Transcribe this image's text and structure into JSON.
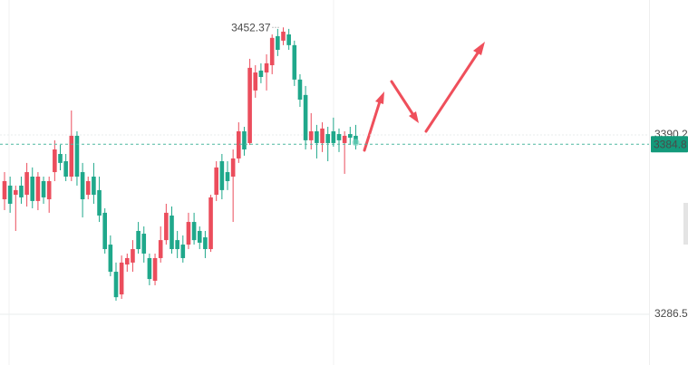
{
  "chart_data": {
    "type": "candlestick",
    "up_color": "#eb4d5c",
    "down_color": "#1fa88b",
    "ylim": [
      3257.2,
      3468.2
    ],
    "yticks": [
      3390.2,
      3286.5
    ],
    "grid": true,
    "last_price": 3384.8,
    "max_annotation": 3452.37,
    "open": [
      3353.0,
      3360.9,
      3355.6,
      3360.9,
      3355.6,
      3366.1,
      3352.0,
      3363.5,
      3353.0,
      3368.7,
      3379.2,
      3375.0,
      3366.1,
      3389.7,
      3368.7,
      3355.6,
      3366.1,
      3358.3,
      3345.2,
      3326.8,
      3311.1,
      3298.0,
      3315.3,
      3316.4,
      3334.7,
      3333.1,
      3319.0,
      3305.9,
      3319.0,
      3329.4,
      3343.6,
      3329.4,
      3326.8,
      3326.8,
      3339.9,
      3334.7,
      3331.0,
      3324.2,
      3355.6,
      3375.0,
      3368.7,
      3366.1,
      3376.6,
      3392.3,
      3385.5,
      3415.9,
      3427.4,
      3426.3,
      3430.5,
      3447.3,
      3444.7,
      3448.3,
      3442.1,
      3422.2,
      3413.3,
      3387.1,
      3392.3,
      3385.5,
      3390.7,
      3392.3,
      3390.7,
      3385.5,
      3390.7,
      3389.7
    ],
    "high": [
      3368.7,
      3366.1,
      3360.9,
      3366.1,
      3374.0,
      3371.4,
      3368.7,
      3366.1,
      3366.1,
      3387.1,
      3384.4,
      3379.2,
      3404.3,
      3392.3,
      3374.0,
      3366.1,
      3374.0,
      3366.1,
      3347.8,
      3332.1,
      3316.4,
      3320.5,
      3321.6,
      3329.4,
      3339.9,
      3337.3,
      3321.6,
      3321.6,
      3337.3,
      3350.4,
      3348.8,
      3334.7,
      3332.1,
      3345.2,
      3345.2,
      3337.3,
      3334.7,
      3355.6,
      3375.0,
      3379.2,
      3375.0,
      3381.8,
      3397.5,
      3394.9,
      3434.2,
      3430.5,
      3431.6,
      3436.8,
      3448.3,
      3451.5,
      3452.37,
      3451.5,
      3444.7,
      3425.3,
      3418.5,
      3402.8,
      3396.0,
      3397.5,
      3394.9,
      3400.2,
      3393.9,
      3392.3,
      3394.9,
      3396.0
    ],
    "low": [
      3346.7,
      3345.2,
      3334.7,
      3350.4,
      3348.8,
      3347.8,
      3346.7,
      3350.4,
      3345.2,
      3363.5,
      3369.8,
      3363.5,
      3363.5,
      3360.9,
      3342.5,
      3353.0,
      3350.4,
      3339.9,
      3321.6,
      3308.5,
      3294.4,
      3295.4,
      3311.1,
      3311.1,
      3321.6,
      3316.4,
      3303.3,
      3303.3,
      3316.4,
      3326.8,
      3321.6,
      3319.0,
      3316.4,
      3324.2,
      3326.8,
      3324.2,
      3319.0,
      3322.6,
      3352.0,
      3353.0,
      3358.3,
      3339.9,
      3374.0,
      3378.2,
      3384.4,
      3411.7,
      3420.1,
      3415.9,
      3425.3,
      3435.8,
      3442.1,
      3439.4,
      3418.5,
      3406.4,
      3381.8,
      3381.8,
      3376.6,
      3380.3,
      3375.0,
      3383.4,
      3380.3,
      3367.7,
      3384.4,
      3381.8
    ],
    "close": [
      3363.5,
      3350.4,
      3358.3,
      3354.1,
      3368.7,
      3352.0,
      3366.1,
      3354.1,
      3363.5,
      3381.8,
      3374.0,
      3366.1,
      3389.7,
      3366.1,
      3353.0,
      3363.5,
      3355.6,
      3343.6,
      3324.2,
      3311.1,
      3296.4,
      3316.4,
      3319.0,
      3324.2,
      3324.2,
      3321.6,
      3306.9,
      3319.0,
      3329.4,
      3345.2,
      3324.2,
      3324.2,
      3319.0,
      3339.9,
      3329.4,
      3327.9,
      3324.2,
      3354.1,
      3371.4,
      3358.3,
      3363.5,
      3376.6,
      3392.3,
      3381.8,
      3429.0,
      3426.3,
      3423.7,
      3431.6,
      3446.3,
      3439.4,
      3449.9,
      3442.1,
      3422.2,
      3410.6,
      3387.1,
      3392.3,
      3385.5,
      3393.9,
      3385.5,
      3385.5,
      3387.1,
      3389.7,
      3388.6,
      3384.8
    ]
  }
}
